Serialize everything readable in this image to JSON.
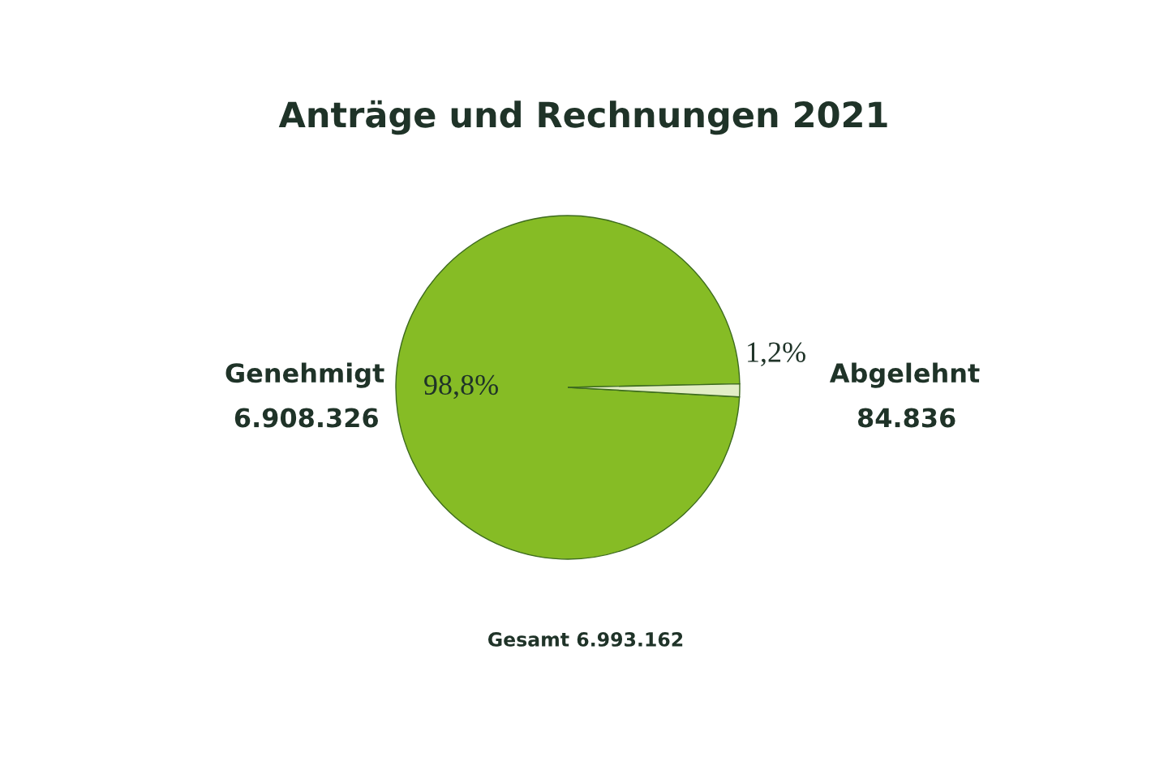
{
  "chart_data": {
    "type": "pie",
    "title": "Anträge und Rechnungen 2021",
    "categories": [
      "Genehmigt",
      "Abgelehnt"
    ],
    "values": [
      6908326,
      84836
    ],
    "colors": [
      "#86bc25",
      "#e2edc5"
    ],
    "value_labels": [
      "6.908.326",
      "84.836"
    ],
    "annotations": [
      {
        "text": "98,8%",
        "x": "Genehmigt"
      },
      {
        "text": "1,2%",
        "x": "Abgelehnt"
      },
      "Gesamt 6.993.162"
    ],
    "legend": false
  }
}
